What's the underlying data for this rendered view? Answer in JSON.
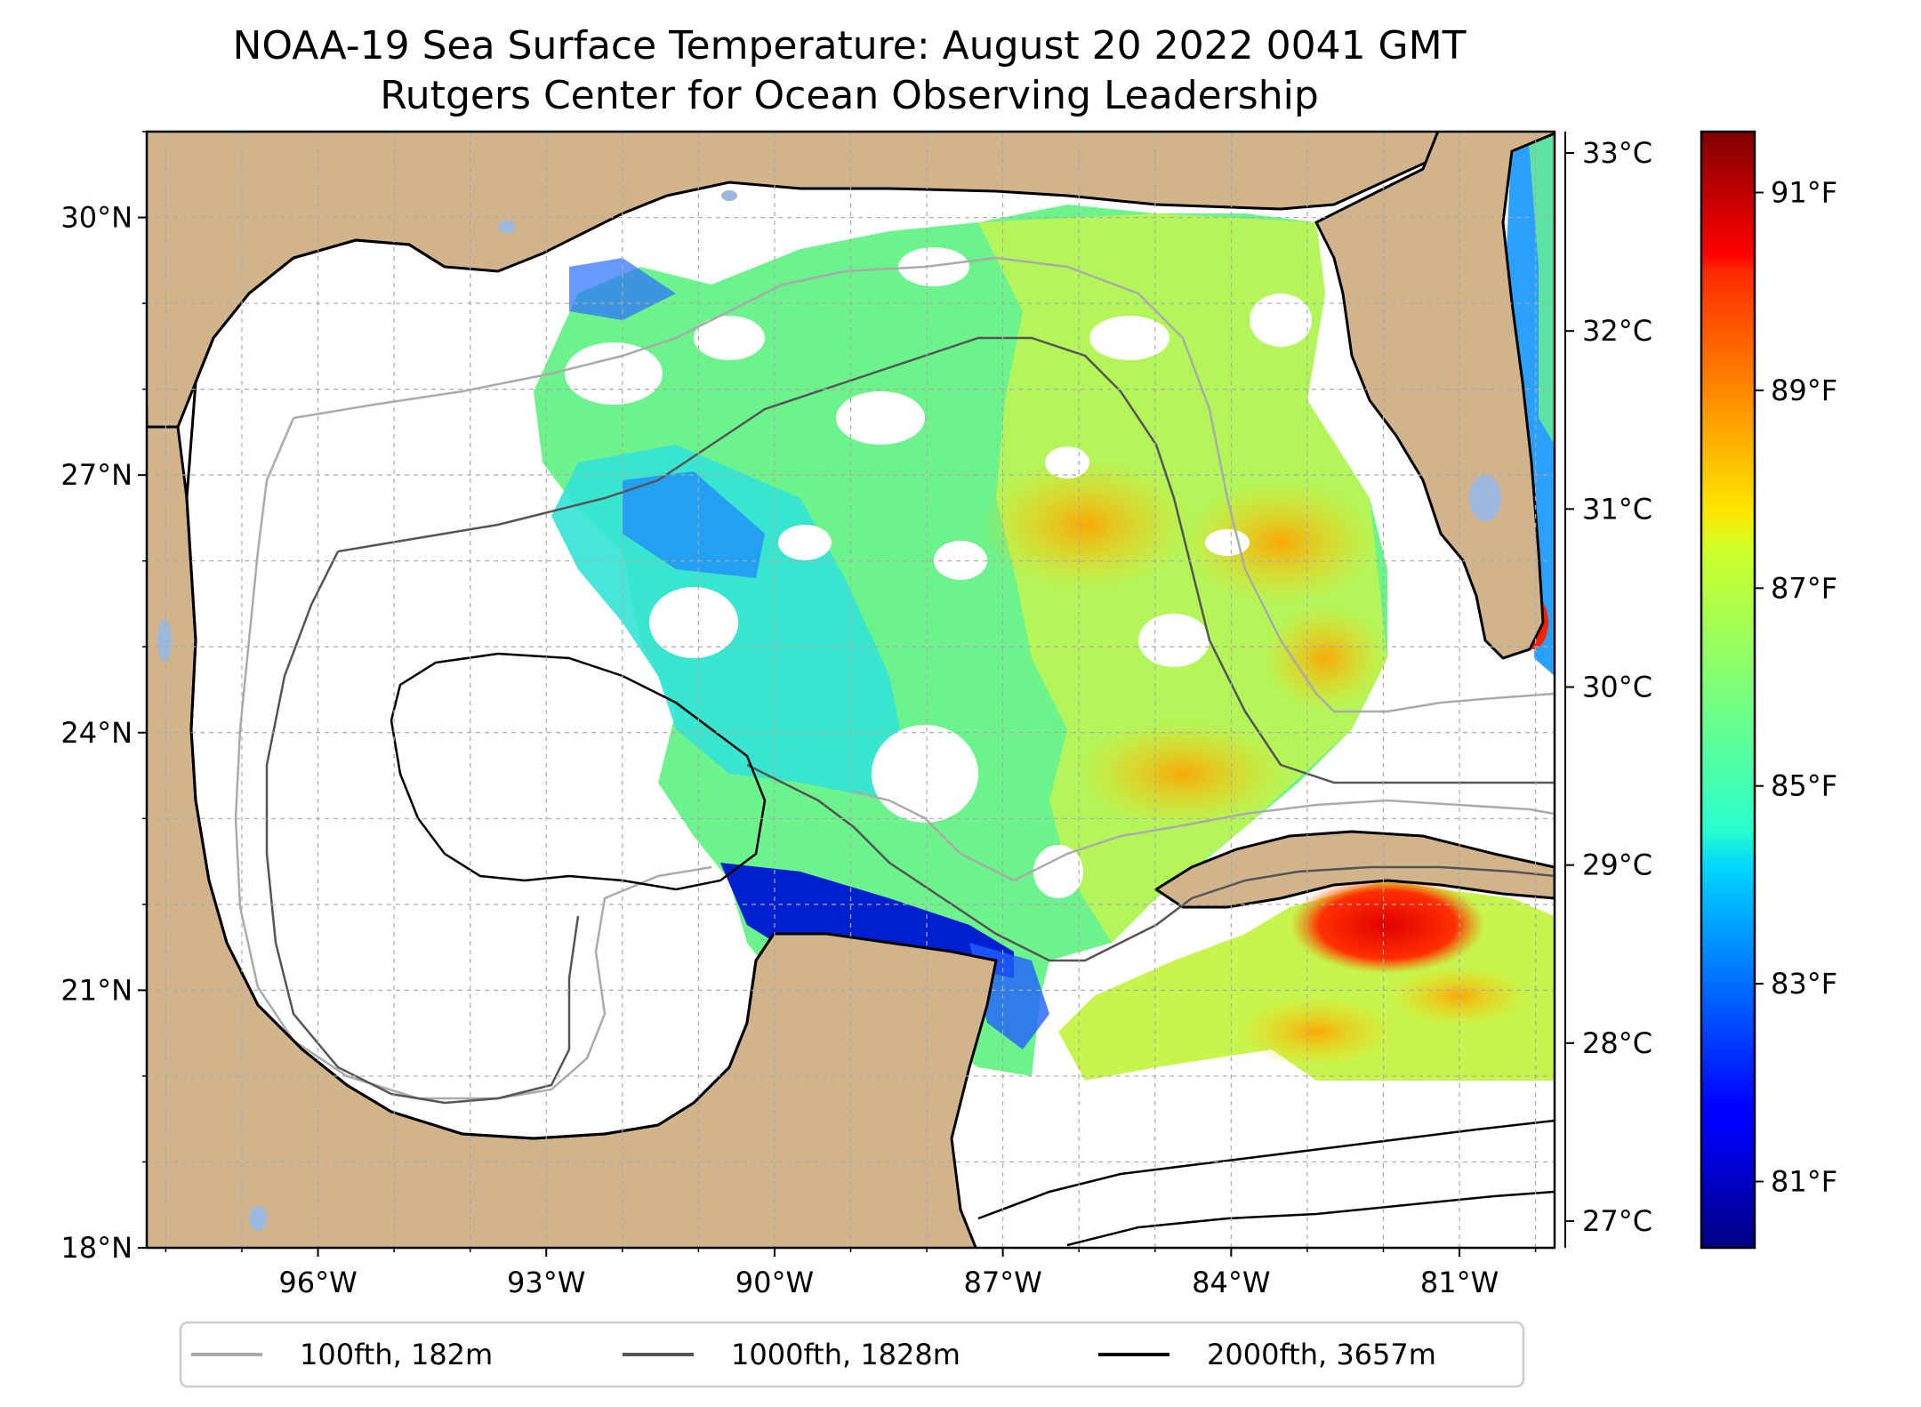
{
  "title": {
    "line1": "NOAA-19 Sea Surface Temperature: August 20 2022 0041 GMT",
    "line2": "Rutgers Center for Ocean Observing Leadership"
  },
  "map": {
    "lon_range": [
      -98.25,
      -79.75
    ],
    "lat_range": [
      18,
      31
    ],
    "lat_ticks": [
      {
        "value": 18,
        "label": "18°N"
      },
      {
        "value": 21,
        "label": "21°N"
      },
      {
        "value": 24,
        "label": "24°N"
      },
      {
        "value": 27,
        "label": "27°N"
      },
      {
        "value": 30,
        "label": "30°N"
      }
    ],
    "lon_ticks": [
      {
        "value": -96,
        "label": "96°W"
      },
      {
        "value": -93,
        "label": "93°W"
      },
      {
        "value": -90,
        "label": "90°W"
      },
      {
        "value": -87,
        "label": "87°W"
      },
      {
        "value": -84,
        "label": "84°W"
      },
      {
        "value": -81,
        "label": "81°W"
      }
    ],
    "colors": {
      "land": "#d2b48c",
      "water_body": "#9db8dd",
      "coastline": "#000000",
      "gridline": "#aaaaaa"
    }
  },
  "colorbar": {
    "colormap": "jet",
    "range_celsius": [
      26.85,
      33.12
    ],
    "celsius_ticks": [
      {
        "value": 27,
        "label": "27°C"
      },
      {
        "value": 28,
        "label": "28°C"
      },
      {
        "value": 29,
        "label": "29°C"
      },
      {
        "value": 30,
        "label": "30°C"
      },
      {
        "value": 31,
        "label": "31°C"
      },
      {
        "value": 32,
        "label": "32°C"
      },
      {
        "value": 33,
        "label": "33°C"
      }
    ],
    "fahrenheit_ticks": [
      {
        "value": 81,
        "label": "81°F"
      },
      {
        "value": 83,
        "label": "83°F"
      },
      {
        "value": 85,
        "label": "85°F"
      },
      {
        "value": 87,
        "label": "87°F"
      },
      {
        "value": 89,
        "label": "89°F"
      },
      {
        "value": 91,
        "label": "91°F"
      }
    ]
  },
  "legend": {
    "placement": "bottom",
    "items": [
      {
        "label": "100fth, 182m",
        "color": "#aaaaaa"
      },
      {
        "label": "1000fth, 1828m",
        "color": "#555555"
      },
      {
        "label": "2000fth, 3657m",
        "color": "#000000"
      }
    ]
  }
}
